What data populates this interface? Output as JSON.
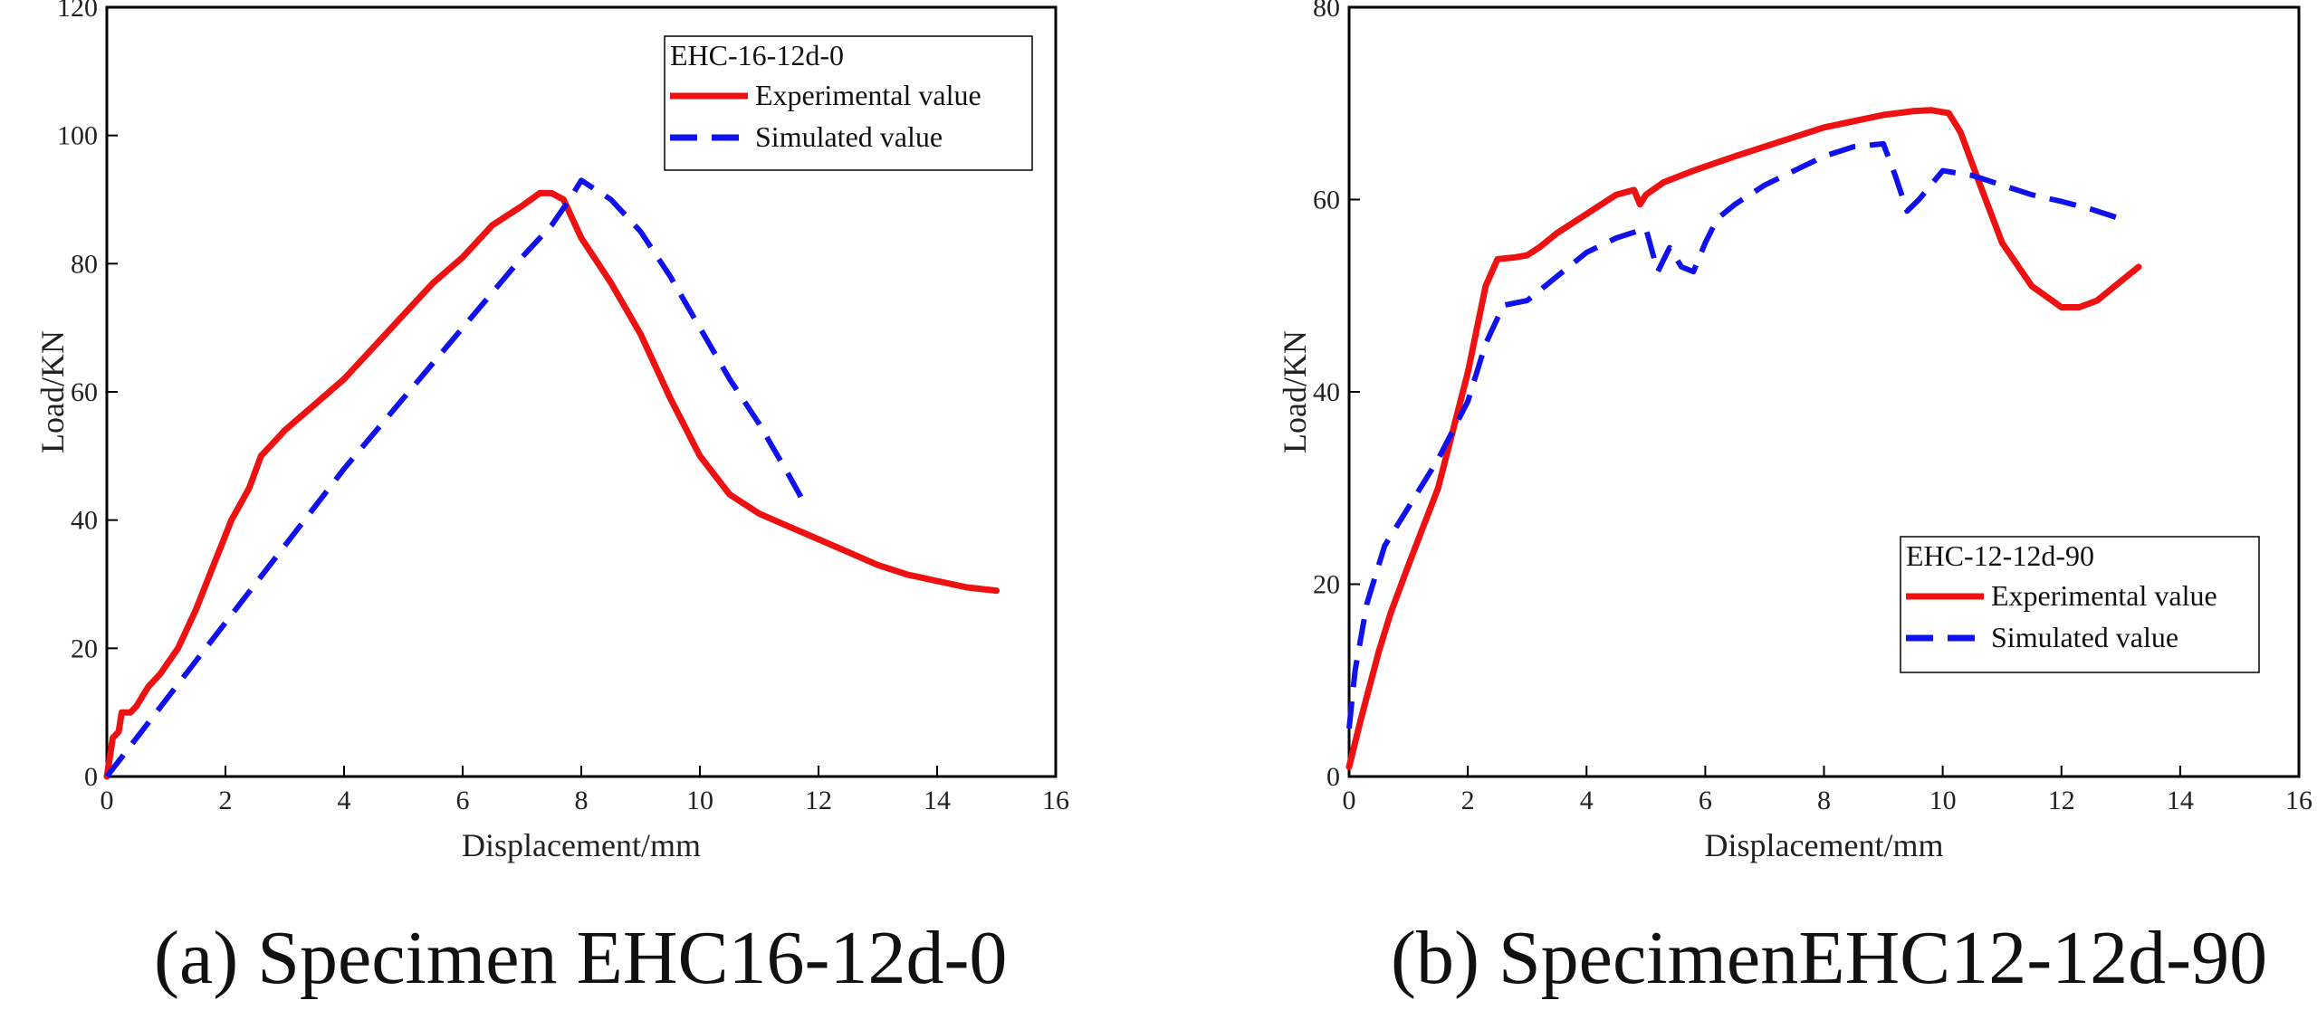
{
  "colors": {
    "experimental": "#ee1111",
    "simulated": "#1111ee",
    "axis": "#000000"
  },
  "chart_data": [
    {
      "type": "line",
      "caption": "(a) Specimen EHC16-12d-0",
      "title": "",
      "xlabel": "Displacement/mm",
      "ylabel": "Load/KN",
      "xlim": [
        0,
        16
      ],
      "ylim": [
        0,
        120
      ],
      "xticks": [
        "0",
        "2",
        "4",
        "6",
        "8",
        "10",
        "12",
        "14",
        "16"
      ],
      "yticks": [
        "0",
        "20",
        "40",
        "60",
        "80",
        "100",
        "120"
      ],
      "grid": false,
      "legend": {
        "position": "top-right",
        "title": "EHC-16-12d-0",
        "entries": [
          "Experimental value",
          "Simulated value"
        ]
      },
      "series": [
        {
          "name": "Experimental value",
          "style": "solid",
          "color": "#ee1111",
          "x": [
            0,
            0.05,
            0.1,
            0.2,
            0.25,
            0.3,
            0.4,
            0.5,
            0.7,
            0.9,
            1.2,
            1.5,
            1.8,
            2.1,
            2.4,
            2.6,
            2.8,
            3.0,
            3.5,
            4.0,
            4.5,
            5.0,
            5.5,
            6.0,
            6.5,
            7.0,
            7.3,
            7.5,
            7.7,
            8.0,
            8.5,
            9.0,
            9.5,
            10.0,
            10.5,
            11.0,
            11.5,
            12.0,
            12.5,
            13.0,
            13.5,
            14.0,
            14.5,
            15.0
          ],
          "y": [
            0,
            3,
            6,
            7,
            10,
            10,
            10,
            11,
            14,
            16,
            20,
            26,
            33,
            40,
            45,
            50,
            52,
            54,
            58,
            62,
            67,
            72,
            77,
            81,
            86,
            89,
            91,
            91,
            90,
            84,
            77,
            69,
            59,
            50,
            44,
            41,
            39,
            37,
            35,
            33,
            31.5,
            30.5,
            29.5,
            29
          ]
        },
        {
          "name": "Simulated value",
          "style": "dashed",
          "color": "#1111ee",
          "x": [
            0,
            0.5,
            1,
            2,
            3,
            4,
            5,
            6,
            7,
            7.5,
            7.8,
            8.0,
            8.5,
            9.0,
            9.5,
            10.0,
            10.5,
            11.0,
            11.5,
            11.8
          ],
          "y": [
            0,
            6,
            12,
            24,
            36,
            48,
            59,
            70,
            81,
            86,
            90,
            93,
            90,
            85,
            78,
            70,
            62,
            55,
            47,
            42
          ]
        }
      ]
    },
    {
      "type": "line",
      "caption": "(b) SpecimenEHC12-12d-90",
      "title": "",
      "xlabel": "Displacement/mm",
      "ylabel": "Load/KN",
      "xlim": [
        0,
        16
      ],
      "ylim": [
        0,
        80
      ],
      "xticks": [
        "0",
        "2",
        "4",
        "6",
        "8",
        "10",
        "12",
        "14",
        "16"
      ],
      "yticks": [
        "0",
        "20",
        "40",
        "60",
        "80"
      ],
      "grid": false,
      "legend": {
        "position": "bottom-right",
        "title": "EHC-12-12d-90",
        "entries": [
          "Experimental value",
          "Simulated value"
        ]
      },
      "series": [
        {
          "name": "Experimental value",
          "style": "solid",
          "color": "#ee1111",
          "x": [
            0,
            0.2,
            0.5,
            0.7,
            1.0,
            1.5,
            2.0,
            2.3,
            2.5,
            2.8,
            3.0,
            3.2,
            3.5,
            4.0,
            4.5,
            4.8,
            4.9,
            5.0,
            5.3,
            5.8,
            6.5,
            7.0,
            8.0,
            9.0,
            9.5,
            9.8,
            10.1,
            10.3,
            10.6,
            11.0,
            11.5,
            12.0,
            12.3,
            12.6,
            13.0,
            13.3
          ],
          "y": [
            1,
            6,
            13,
            17,
            22,
            30,
            42,
            51,
            53.8,
            54,
            54.2,
            55,
            56.5,
            58.5,
            60.5,
            61,
            59.5,
            60.5,
            61.8,
            63,
            64.5,
            65.5,
            67.5,
            68.8,
            69.2,
            69.3,
            69,
            67,
            62,
            55.5,
            51,
            48.8,
            48.8,
            49.5,
            51.5,
            53
          ]
        },
        {
          "name": "Simulated value",
          "style": "dashed",
          "color": "#1111ee",
          "x": [
            0,
            0.1,
            0.3,
            0.6,
            1.0,
            1.5,
            2.0,
            2.3,
            2.6,
            3.0,
            3.5,
            4.0,
            4.5,
            5.0,
            5.2,
            5.4,
            5.6,
            5.8,
            6.0,
            6.2,
            6.5,
            7.0,
            7.5,
            8.0,
            8.5,
            9.0,
            9.2,
            9.4,
            9.6,
            9.8,
            10.0,
            10.5,
            11.0,
            11.5,
            12.0,
            12.5,
            13.0
          ],
          "y": [
            5,
            11,
            18,
            24,
            28,
            33,
            39,
            45,
            49,
            49.5,
            52,
            54.5,
            56,
            57,
            52.5,
            55,
            53,
            52.5,
            55.5,
            58,
            59.5,
            61.5,
            63,
            64.5,
            65.5,
            65.8,
            62.5,
            58.8,
            60,
            61.5,
            63,
            62.5,
            61.5,
            60.5,
            59.8,
            59,
            58
          ]
        }
      ]
    }
  ]
}
